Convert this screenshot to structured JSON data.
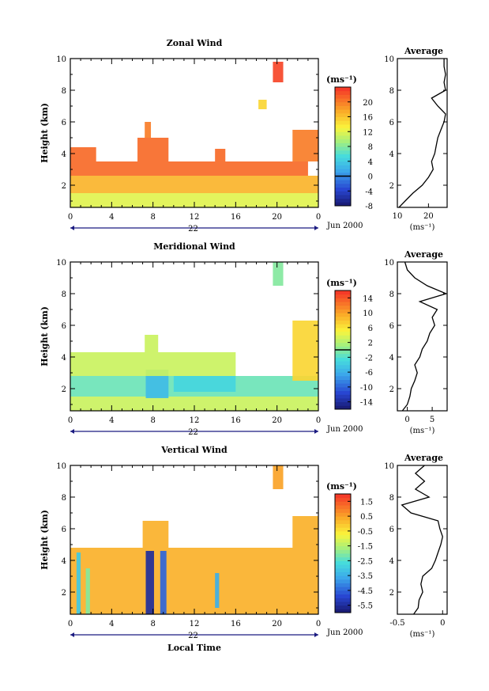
{
  "chart_data": [
    {
      "id": "zonal",
      "type": "heatmap",
      "title": "Zonal Wind",
      "ylabel": "Height (km)",
      "xlabel": "",
      "x_ticks": [
        "0",
        "4",
        "8",
        "12",
        "16",
        "20",
        "0"
      ],
      "xlim": [
        0,
        24
      ],
      "ylim": [
        0.6,
        10
      ],
      "y_ticks": [
        2,
        4,
        6,
        8,
        10
      ],
      "date_day": "22",
      "date_label": "Jun 2000",
      "unit_label": "(ms⁻¹)",
      "colorbar": {
        "min": -8,
        "max": 24,
        "ticks": [
          20,
          16,
          12,
          8,
          4,
          0,
          -4,
          -8
        ],
        "zero_line": 0
      },
      "regions": [
        {
          "x0": 0,
          "x1": 24,
          "y0": 0.6,
          "y1": 1.5,
          "value": 12
        },
        {
          "x0": 0,
          "x1": 24,
          "y0": 1.5,
          "y1": 2.6,
          "value": 17
        },
        {
          "x0": 0,
          "x1": 23,
          "y0": 2.6,
          "y1": 3.5,
          "value": 21
        },
        {
          "x0": 0,
          "x1": 2.5,
          "y0": 3.5,
          "y1": 4.4,
          "value": 21
        },
        {
          "x0": 6.5,
          "x1": 9.5,
          "y0": 3.5,
          "y1": 5.0,
          "value": 21
        },
        {
          "x0": 7.2,
          "x1": 7.8,
          "y0": 5.0,
          "y1": 6.0,
          "value": 20
        },
        {
          "x0": 14,
          "x1": 15,
          "y0": 3.5,
          "y1": 4.3,
          "value": 21
        },
        {
          "x0": 21.5,
          "x1": 24,
          "y0": 3.5,
          "y1": 5.5,
          "value": 20
        },
        {
          "x0": 19.6,
          "x1": 20.6,
          "y0": 8.5,
          "y1": 9.8,
          "value": 23
        },
        {
          "x0": 18.2,
          "x1": 19.0,
          "y0": 6.8,
          "y1": 7.4,
          "value": 15
        }
      ],
      "average": {
        "title": "Average",
        "xlim": [
          10,
          26
        ],
        "x_ticks": [
          10,
          20
        ],
        "y_ticks": [
          2,
          4,
          6,
          8,
          10
        ],
        "xunit": "(ms⁻¹)",
        "height": [
          0.6,
          1.0,
          1.5,
          2.0,
          2.5,
          3.0,
          3.5,
          4.0,
          4.5,
          5.0,
          5.5,
          6.0,
          6.5,
          7.0,
          7.5,
          8.0,
          8.5,
          9.0,
          9.5,
          10.0
        ],
        "value": [
          10.5,
          12.5,
          15,
          18,
          20,
          21.5,
          21,
          22,
          22.5,
          23,
          24,
          25,
          25.5,
          23,
          21,
          25.5,
          25,
          25.5,
          25,
          25
        ]
      }
    },
    {
      "id": "meridional",
      "type": "heatmap",
      "title": "Meridional Wind",
      "ylabel": "Height (km)",
      "xlabel": "",
      "x_ticks": [
        "0",
        "4",
        "8",
        "12",
        "16",
        "20",
        "0"
      ],
      "xlim": [
        0,
        24
      ],
      "ylim": [
        0.6,
        10
      ],
      "y_ticks": [
        2,
        4,
        6,
        8,
        10
      ],
      "date_day": "22",
      "date_label": "Jun 2000",
      "unit_label": "(ms⁻¹)",
      "colorbar": {
        "min": -16,
        "max": 16,
        "ticks": [
          14,
          10,
          6,
          2,
          -2,
          -6,
          -10,
          -14
        ],
        "zero_line": 0
      },
      "regions": [
        {
          "x0": 0,
          "x1": 24,
          "y0": 0.6,
          "y1": 1.5,
          "value": 3
        },
        {
          "x0": 0,
          "x1": 24,
          "y0": 1.5,
          "y1": 2.8,
          "value": -1
        },
        {
          "x0": 7.3,
          "x1": 9.5,
          "y0": 1.4,
          "y1": 3.2,
          "value": -5
        },
        {
          "x0": 10,
          "x1": 16,
          "y0": 1.8,
          "y1": 2.8,
          "value": -3
        },
        {
          "x0": 0,
          "x1": 16,
          "y0": 2.8,
          "y1": 4.3,
          "value": 3
        },
        {
          "x0": 7.2,
          "x1": 8.5,
          "y0": 4.3,
          "y1": 5.4,
          "value": 3
        },
        {
          "x0": 21.5,
          "x1": 24,
          "y0": 2.5,
          "y1": 6.3,
          "value": 7
        },
        {
          "x0": 19.6,
          "x1": 20.6,
          "y0": 8.5,
          "y1": 10,
          "value": 0
        }
      ],
      "average": {
        "title": "Average",
        "xlim": [
          -2,
          8
        ],
        "x_ticks": [
          0,
          5
        ],
        "y_ticks": [
          2,
          4,
          6,
          8,
          10
        ],
        "xunit": "(ms⁻¹)",
        "height": [
          0.6,
          1.0,
          1.5,
          2.0,
          2.5,
          3.0,
          3.5,
          4.0,
          4.5,
          5.0,
          5.5,
          6.0,
          6.5,
          7.0,
          7.5,
          8.0,
          8.5,
          9.0,
          9.5,
          10.0
        ],
        "value": [
          -1,
          0,
          0.5,
          0.8,
          1.5,
          2,
          1.5,
          2.5,
          3,
          4,
          4.5,
          5.5,
          5,
          6,
          2.5,
          7.8,
          4,
          1.5,
          0,
          -0.5
        ]
      }
    },
    {
      "id": "vertical",
      "type": "heatmap",
      "title": "Vertical Wind",
      "ylabel": "Height (km)",
      "xlabel": "Local Time",
      "x_ticks": [
        "0",
        "4",
        "8",
        "12",
        "16",
        "20",
        "0"
      ],
      "xlim": [
        0,
        24
      ],
      "ylim": [
        0.6,
        10
      ],
      "y_ticks": [
        2,
        4,
        6,
        8,
        10
      ],
      "date_day": "22",
      "date_label": "Jun 2000",
      "unit_label": "(ms⁻¹)",
      "colorbar": {
        "min": -6,
        "max": 2,
        "ticks": [
          1.5,
          0.5,
          -0.5,
          -1.5,
          -2.5,
          -3.5,
          -4.5,
          -5.5
        ]
      },
      "regions": [
        {
          "x0": 0,
          "x1": 24,
          "y0": 0.6,
          "y1": 4.8,
          "value": 0.3
        },
        {
          "x0": 7,
          "x1": 9.5,
          "y0": 4.8,
          "y1": 6.5,
          "value": 0.3
        },
        {
          "x0": 21.5,
          "x1": 24,
          "y0": 4.8,
          "y1": 6.8,
          "value": 0.3
        },
        {
          "x0": 0.6,
          "x1": 1.0,
          "y0": 0.6,
          "y1": 4.5,
          "value": -3.0
        },
        {
          "x0": 1.5,
          "x1": 1.9,
          "y0": 0.6,
          "y1": 3.5,
          "value": -2.0
        },
        {
          "x0": 7.3,
          "x1": 8.1,
          "y0": 0.6,
          "y1": 4.6,
          "value": -5.5
        },
        {
          "x0": 8.7,
          "x1": 9.3,
          "y0": 0.6,
          "y1": 4.6,
          "value": -4.5
        },
        {
          "x0": 14,
          "x1": 14.4,
          "y0": 1.0,
          "y1": 3.2,
          "value": -3.5
        },
        {
          "x0": 19.6,
          "x1": 20.6,
          "y0": 8.5,
          "y1": 10,
          "value": 0.5
        }
      ],
      "average": {
        "title": "Average",
        "xlim": [
          -0.5,
          0.05
        ],
        "x_ticks": [
          -0.5,
          0.0
        ],
        "y_ticks": [
          2,
          4,
          6,
          8,
          10
        ],
        "xunit": "(ms⁻¹)",
        "height": [
          0.6,
          1.0,
          1.5,
          2.0,
          2.5,
          3.0,
          3.5,
          4.0,
          4.5,
          5.0,
          5.5,
          6.0,
          6.5,
          7.0,
          7.5,
          8.0,
          8.5,
          9.0,
          9.5,
          10.0
        ],
        "value": [
          -0.32,
          -0.27,
          -0.26,
          -0.22,
          -0.24,
          -0.22,
          -0.12,
          -0.08,
          -0.05,
          -0.02,
          0.0,
          -0.03,
          -0.05,
          -0.35,
          -0.45,
          -0.15,
          -0.3,
          -0.2,
          -0.3,
          -0.2
        ]
      }
    }
  ]
}
